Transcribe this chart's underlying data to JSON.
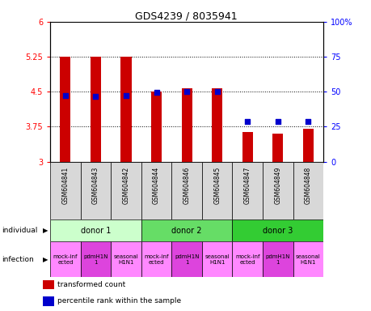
{
  "title": "GDS4239 / 8035941",
  "samples": [
    "GSM604841",
    "GSM604843",
    "GSM604842",
    "GSM604844",
    "GSM604846",
    "GSM604845",
    "GSM604847",
    "GSM604849",
    "GSM604848"
  ],
  "bar_values": [
    5.25,
    5.25,
    5.25,
    4.5,
    4.57,
    4.57,
    3.63,
    3.6,
    3.7
  ],
  "bar_color": "#cc0000",
  "bar_base": 3.0,
  "blue_dot_values": [
    4.42,
    4.4,
    4.42,
    4.48,
    4.5,
    4.5,
    3.86,
    3.86,
    3.86
  ],
  "dot_color": "#0000cc",
  "ylim": [
    3.0,
    6.0
  ],
  "yticks": [
    3.0,
    3.75,
    4.5,
    5.25,
    6.0
  ],
  "ytick_labels": [
    "3",
    "3.75",
    "4.5",
    "5.25",
    "6"
  ],
  "y2lim": [
    0,
    100
  ],
  "y2ticks": [
    0,
    25,
    50,
    75,
    100
  ],
  "y2tick_labels": [
    "0",
    "25",
    "50",
    "75",
    "100%"
  ],
  "hlines": [
    3.75,
    4.5,
    5.25
  ],
  "donors": [
    {
      "label": "donor 1",
      "span": [
        0,
        3
      ],
      "color": "#ccffcc"
    },
    {
      "label": "donor 2",
      "span": [
        3,
        6
      ],
      "color": "#66dd66"
    },
    {
      "label": "donor 3",
      "span": [
        6,
        9
      ],
      "color": "#33cc33"
    }
  ],
  "infections": [
    {
      "label": "mock-inf\nected",
      "span": [
        0,
        1
      ],
      "color": "#ff88ff"
    },
    {
      "label": "pdmH1N\n1",
      "span": [
        1,
        2
      ],
      "color": "#dd44dd"
    },
    {
      "label": "seasonal\nH1N1",
      "span": [
        2,
        3
      ],
      "color": "#ff88ff"
    },
    {
      "label": "mock-inf\nected",
      "span": [
        3,
        4
      ],
      "color": "#ff88ff"
    },
    {
      "label": "pdmH1N\n1",
      "span": [
        4,
        5
      ],
      "color": "#dd44dd"
    },
    {
      "label": "seasonal\nH1N1",
      "span": [
        5,
        6
      ],
      "color": "#ff88ff"
    },
    {
      "label": "mock-inf\nected",
      "span": [
        6,
        7
      ],
      "color": "#ff88ff"
    },
    {
      "label": "pdmH1N\n1",
      "span": [
        7,
        8
      ],
      "color": "#dd44dd"
    },
    {
      "label": "seasonal\nH1N1",
      "span": [
        8,
        9
      ],
      "color": "#ff88ff"
    }
  ],
  "legend_items": [
    {
      "color": "#cc0000",
      "label": "transformed count"
    },
    {
      "color": "#0000cc",
      "label": "percentile rank within the sample"
    }
  ],
  "sample_bg_color": "#d8d8d8",
  "bar_width": 0.35
}
